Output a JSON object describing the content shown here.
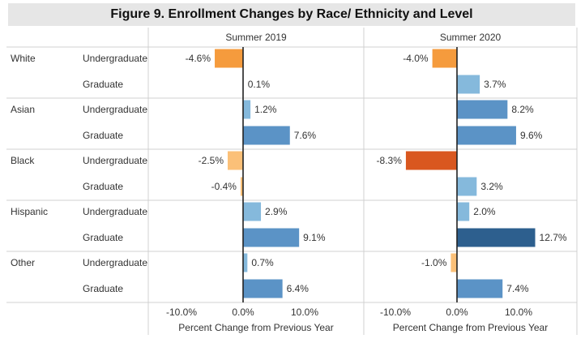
{
  "chart_data": {
    "type": "bar",
    "orientation": "horizontal",
    "title": "Figure 9. Enrollment Changes by Race/ Ethnicity and Level",
    "panels": [
      {
        "name": "Summer 2019",
        "xlabel": "Percent Change from Previous Year"
      },
      {
        "name": "Summer 2020",
        "xlabel": "Percent Change from Previous Year"
      }
    ],
    "xlim": [
      -15,
      15
    ],
    "xticks": [
      "-10.0%",
      "0.0%",
      "10.0%"
    ],
    "xtick_values": [
      -10,
      0,
      10
    ],
    "groups": [
      {
        "name": "White",
        "rows": [
          {
            "level": "Undergraduate",
            "values": [
              -4.6,
              -4.0
            ],
            "labels": [
              "-4.6%",
              "-4.0%"
            ]
          },
          {
            "level": "Graduate",
            "values": [
              0.1,
              3.7
            ],
            "labels": [
              "0.1%",
              "3.7%"
            ]
          }
        ]
      },
      {
        "name": "Asian",
        "rows": [
          {
            "level": "Undergraduate",
            "values": [
              1.2,
              8.2
            ],
            "labels": [
              "1.2%",
              "8.2%"
            ]
          },
          {
            "level": "Graduate",
            "values": [
              7.6,
              9.6
            ],
            "labels": [
              "7.6%",
              "9.6%"
            ]
          }
        ]
      },
      {
        "name": "Black",
        "rows": [
          {
            "level": "Undergraduate",
            "values": [
              -2.5,
              -8.3
            ],
            "labels": [
              "-2.5%",
              "-8.3%"
            ]
          },
          {
            "level": "Graduate",
            "values": [
              -0.4,
              3.2
            ],
            "labels": [
              "-0.4%",
              "3.2%"
            ]
          }
        ]
      },
      {
        "name": "Hispanic",
        "rows": [
          {
            "level": "Undergraduate",
            "values": [
              2.9,
              2.0
            ],
            "labels": [
              "2.9%",
              "2.0%"
            ]
          },
          {
            "level": "Graduate",
            "values": [
              9.1,
              12.7
            ],
            "labels": [
              "9.1%",
              "12.7%"
            ]
          }
        ]
      },
      {
        "name": "Other",
        "rows": [
          {
            "level": "Undergraduate",
            "values": [
              0.7,
              -1.0
            ],
            "labels": [
              "0.7%",
              "-1.0%"
            ]
          },
          {
            "level": "Graduate",
            "values": [
              6.4,
              7.4
            ],
            "labels": [
              "6.4%",
              "7.4%"
            ]
          }
        ]
      }
    ],
    "color_scale": {
      "negative": [
        "#fbc078",
        "#f59b3d",
        "#d9571f"
      ],
      "positive": [
        "#d7e6f2",
        "#85b9dc",
        "#5b93c6",
        "#2d5f8e"
      ]
    }
  }
}
